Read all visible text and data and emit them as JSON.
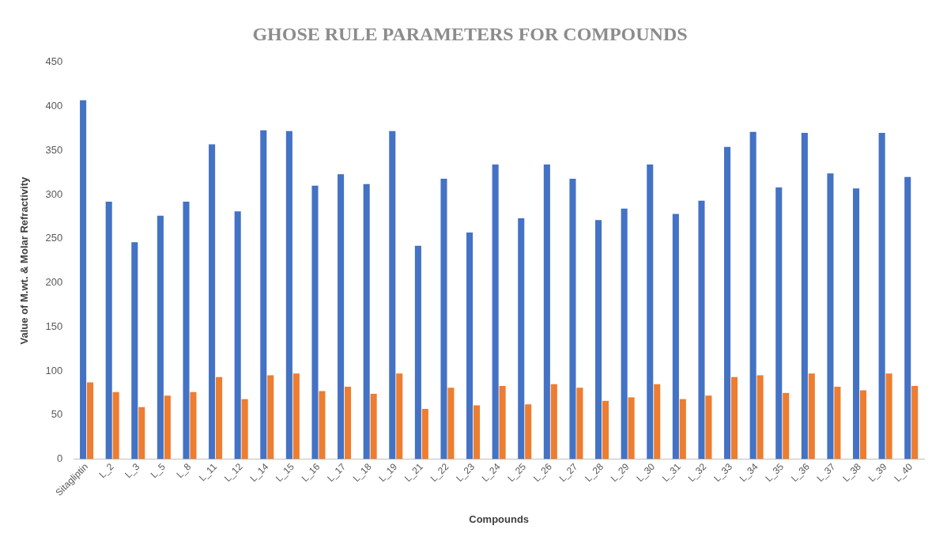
{
  "chart_data": {
    "type": "bar",
    "title": "GHOSE RULE PARAMETERS FOR COMPOUNDS",
    "xlabel": "Compounds",
    "ylabel": "Value of M.wt. & Molar Refractivity",
    "categories": [
      "Sitagliptin",
      "L_2",
      "L_3",
      "L_5",
      "L_8",
      "L_11",
      "L_12",
      "L_14",
      "L_15",
      "L_16",
      "L_17",
      "L_18",
      "L_19",
      "L_21",
      "L_22",
      "L_23",
      "L_24",
      "L_25",
      "L_26",
      "L_27",
      "L_28",
      "L_29",
      "L_30",
      "L_31",
      "L_32",
      "L_33",
      "L_34",
      "L_35",
      "L_36",
      "L_37",
      "L_38",
      "L_39",
      "L_40"
    ],
    "series": [
      {
        "color": "#4472c4",
        "values": [
          407,
          292,
          246,
          276,
          292,
          357,
          281,
          373,
          372,
          310,
          323,
          312,
          372,
          242,
          318,
          257,
          334,
          273,
          334,
          318,
          271,
          284,
          334,
          278,
          293,
          354,
          371,
          308,
          370,
          324,
          307,
          370,
          320
        ]
      },
      {
        "color": "#ed7d31",
        "values": [
          87,
          76,
          59,
          72,
          76,
          93,
          68,
          95,
          97,
          77,
          82,
          74,
          97,
          57,
          81,
          61,
          83,
          62,
          85,
          81,
          66,
          70,
          85,
          68,
          72,
          93,
          95,
          75,
          97,
          82,
          78,
          97,
          83
        ]
      }
    ],
    "ylim": [
      0,
      450
    ],
    "yticks": [
      0,
      50,
      100,
      150,
      200,
      250,
      300,
      350,
      400,
      450
    ],
    "grid": false,
    "legend": false
  }
}
